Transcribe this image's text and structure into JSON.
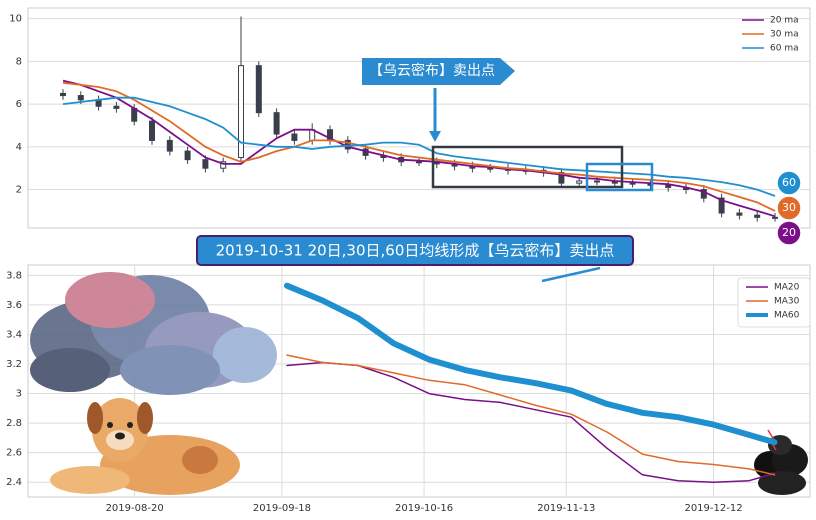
{
  "chart_data": [
    {
      "type": "candlestick",
      "annotation": "【乌云密布】卖出点",
      "end_labels": [
        "60",
        "30",
        "20"
      ],
      "open": [
        6.5,
        6.4,
        6.2,
        5.9,
        5.8,
        5.2,
        4.3,
        3.8,
        3.4,
        3.0,
        3.5,
        7.8,
        5.6,
        4.6,
        4.3,
        4.8,
        4.3,
        3.9,
        3.6,
        3.5,
        3.3,
        3.3,
        3.2,
        3.1,
        3.0,
        3.0,
        2.9,
        2.9,
        2.8,
        2.3,
        2.4,
        2.4,
        2.3,
        2.3,
        2.2,
        2.1,
        2.0,
        1.6,
        0.9,
        0.8,
        0.7
      ],
      "high": [
        6.7,
        6.6,
        6.4,
        6.1,
        6.0,
        5.4,
        4.5,
        4.0,
        3.6,
        3.5,
        10.1,
        8.0,
        5.8,
        4.8,
        5.1,
        5.0,
        4.5,
        4.1,
        3.8,
        3.7,
        3.5,
        3.5,
        3.4,
        3.3,
        3.2,
        3.2,
        3.1,
        3.1,
        3.0,
        2.6,
        2.6,
        2.6,
        2.5,
        2.5,
        2.4,
        2.3,
        2.2,
        1.8,
        1.1,
        1.0,
        0.9
      ],
      "low": [
        6.2,
        6.0,
        5.7,
        5.6,
        5.0,
        4.1,
        3.6,
        3.2,
        2.8,
        2.8,
        3.3,
        5.4,
        4.4,
        4.1,
        4.1,
        4.1,
        3.7,
        3.4,
        3.3,
        3.1,
        3.1,
        3.0,
        2.9,
        2.8,
        2.8,
        2.7,
        2.7,
        2.6,
        2.1,
        2.1,
        2.2,
        2.1,
        2.1,
        2.0,
        1.9,
        1.8,
        1.4,
        0.7,
        0.6,
        0.5,
        0.5
      ],
      "close": [
        6.4,
        6.2,
        5.9,
        5.8,
        5.2,
        4.3,
        3.8,
        3.4,
        3.0,
        3.3,
        7.8,
        5.6,
        4.6,
        4.3,
        4.8,
        4.3,
        3.9,
        3.6,
        3.5,
        3.3,
        3.3,
        3.2,
        3.1,
        3.0,
        3.0,
        2.9,
        2.9,
        2.8,
        2.3,
        2.4,
        2.4,
        2.3,
        2.3,
        2.2,
        2.1,
        2.0,
        1.6,
        0.9,
        0.8,
        0.7,
        0.7
      ],
      "candle_color": "#3b3f4c",
      "series": [
        {
          "name": "20 ma",
          "color": "#7b0f8a",
          "values": [
            7.1,
            6.9,
            6.6,
            6.3,
            5.8,
            5.3,
            4.7,
            4.1,
            3.5,
            3.2,
            3.2,
            3.8,
            4.4,
            4.8,
            4.8,
            4.4,
            4.0,
            3.8,
            3.6,
            3.4,
            3.35,
            3.3,
            3.2,
            3.1,
            3.05,
            2.95,
            2.9,
            2.8,
            2.7,
            2.55,
            2.5,
            2.4,
            2.35,
            2.3,
            2.25,
            2.1,
            1.9,
            1.5,
            1.25,
            1.0,
            0.75
          ]
        },
        {
          "name": "30 ma",
          "color": "#e06a28",
          "values": [
            7.0,
            6.9,
            6.8,
            6.6,
            6.2,
            5.7,
            5.2,
            4.6,
            4.0,
            3.6,
            3.3,
            3.5,
            3.8,
            4.0,
            4.3,
            4.3,
            4.2,
            4.0,
            3.8,
            3.6,
            3.5,
            3.4,
            3.3,
            3.2,
            3.1,
            3.0,
            2.95,
            2.85,
            2.75,
            2.7,
            2.6,
            2.55,
            2.5,
            2.45,
            2.4,
            2.3,
            2.15,
            1.9,
            1.65,
            1.4,
            1.0
          ]
        },
        {
          "name": "60 ma",
          "color": "#1f8fd0",
          "values": [
            6.0,
            6.1,
            6.2,
            6.3,
            6.3,
            6.1,
            5.9,
            5.6,
            5.3,
            4.9,
            4.2,
            4.1,
            4.0,
            4.0,
            3.9,
            4.0,
            4.05,
            4.1,
            4.2,
            4.2,
            4.1,
            3.7,
            3.55,
            3.45,
            3.35,
            3.25,
            3.15,
            3.05,
            2.95,
            2.9,
            2.85,
            2.8,
            2.75,
            2.7,
            2.6,
            2.55,
            2.45,
            2.35,
            2.2,
            2.0,
            1.7
          ]
        }
      ],
      "ylim": [
        0.2,
        10.5
      ],
      "yticks": [
        2,
        4,
        6,
        8,
        10
      ],
      "grid": true,
      "legend": "upper right"
    },
    {
      "type": "line",
      "annotation": "2019-10-31 20日,30日,60日均线形成【乌云密布】卖出点",
      "x": [
        "2019-09-19",
        "2019-09-26",
        "2019-10-03",
        "2019-10-10",
        "2019-10-17",
        "2019-10-24",
        "2019-10-31",
        "2019-11-07",
        "2019-11-14",
        "2019-11-21",
        "2019-11-28",
        "2019-12-05",
        "2019-12-12",
        "2019-12-19",
        "2019-12-24"
      ],
      "series": [
        {
          "name": "MA20",
          "color": "#7b0f8a",
          "width": 1.5,
          "values": [
            3.19,
            3.21,
            3.19,
            3.11,
            3.0,
            2.96,
            2.94,
            2.89,
            2.84,
            2.63,
            2.45,
            2.41,
            2.4,
            2.41,
            2.46
          ]
        },
        {
          "name": "MA30",
          "color": "#e06a28",
          "width": 1.5,
          "values": [
            3.26,
            3.21,
            3.19,
            3.14,
            3.09,
            3.06,
            2.99,
            2.92,
            2.86,
            2.74,
            2.59,
            2.54,
            2.52,
            2.49,
            2.45
          ]
        },
        {
          "name": "MA60",
          "color": "#1f8fd0",
          "width": 6,
          "values": [
            3.73,
            3.63,
            3.51,
            3.34,
            3.23,
            3.16,
            3.11,
            3.07,
            3.02,
            2.93,
            2.87,
            2.84,
            2.79,
            2.72,
            2.67
          ]
        }
      ],
      "xlim": [
        "2019-07-30",
        "2019-12-31"
      ],
      "xticks": [
        "2019-08-20",
        "2019-09-18",
        "2019-10-16",
        "2019-11-13",
        "2019-12-12"
      ],
      "ylim": [
        2.3,
        3.87
      ],
      "yticks": [
        2.4,
        2.6,
        2.8,
        3.0,
        3.2,
        3.4,
        3.6,
        3.8
      ],
      "grid": true,
      "legend": "upper right"
    }
  ]
}
